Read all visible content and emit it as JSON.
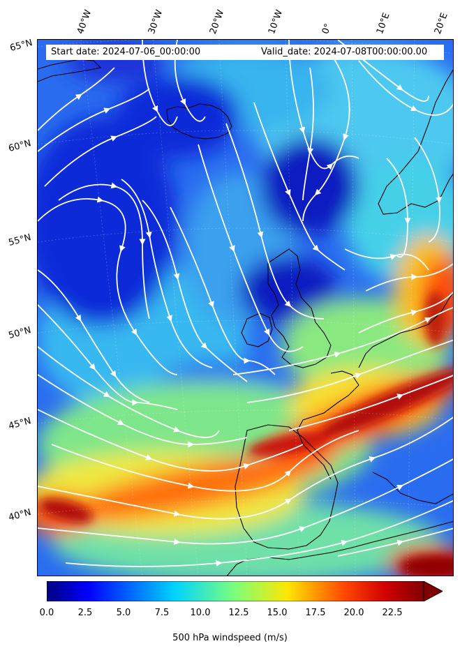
{
  "header": {
    "start_date": "Start date: 2024-07-06_00:00:00",
    "valid_date": "Valid_date: 2024-07-08T00:00:00.00"
  },
  "map": {
    "projection": "lambert-conformal",
    "field": "500 hPa windspeed",
    "streamline_color": "#ffffff",
    "coastline_color": "#000000",
    "lon_labels": [
      "40°W",
      "30°W",
      "20°W",
      "10°W",
      "0°",
      "10°E",
      "20°E"
    ],
    "lat_labels": [
      "65°N",
      "60°N",
      "55°N",
      "50°N",
      "45°N",
      "40°N"
    ]
  },
  "colorbar": {
    "label": "500 hPa windspeed (m/s)",
    "ticks": [
      "0.0",
      "2.5",
      "5.0",
      "7.5",
      "10.0",
      "12.5",
      "15.0",
      "17.5",
      "20.0",
      "22.5"
    ],
    "min": 0,
    "max": 25,
    "colormap": "jet",
    "extend": "max"
  }
}
